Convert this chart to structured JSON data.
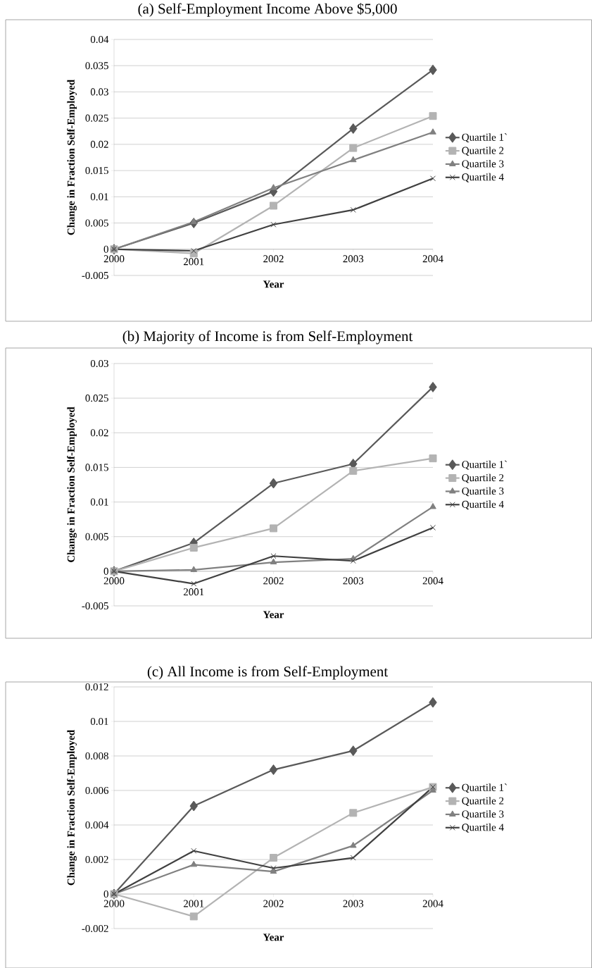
{
  "chart_data": [
    {
      "type": "line",
      "title": "(a) Self-Employment Income Above $5,000",
      "xlabel": "Year",
      "ylabel": "Change in Fraction Self-Employed",
      "categories": [
        "2000",
        "2001",
        "2002",
        "2003",
        "2004"
      ],
      "ylim": [
        -0.005,
        0.04
      ],
      "yticks": [
        -0.005,
        0,
        0.005,
        0.01,
        0.015,
        0.02,
        0.025,
        0.03,
        0.035,
        0.04
      ],
      "grid": "y",
      "legend": "right",
      "series": [
        {
          "name": "Quartile 1`",
          "color": "#595959",
          "marker": "diamond",
          "values": [
            0,
            0.005,
            0.011,
            0.023,
            0.0342
          ]
        },
        {
          "name": "Quartile 2",
          "color": "#b3b3b3",
          "marker": "square",
          "values": [
            0,
            -0.0008,
            0.0083,
            0.0193,
            0.0254
          ]
        },
        {
          "name": "Quartile 3",
          "color": "#808080",
          "marker": "triangle",
          "values": [
            0,
            0.0052,
            0.0117,
            0.017,
            0.0223
          ]
        },
        {
          "name": "Quartile 4",
          "color": "#404040",
          "marker": "cross",
          "values": [
            0,
            -0.0003,
            0.0047,
            0.0075,
            0.0135
          ]
        }
      ]
    },
    {
      "type": "line",
      "title": "(b) Majority of Income is from Self-Employment",
      "xlabel": "Year",
      "ylabel": "Change in Fraction Self-Employed",
      "categories": [
        "2000",
        "2001",
        "2002",
        "2003",
        "2004"
      ],
      "ylim": [
        -0.005,
        0.03
      ],
      "yticks": [
        -0.005,
        0,
        0.005,
        0.01,
        0.015,
        0.02,
        0.025,
        0.03
      ],
      "grid": "y",
      "legend": "right",
      "series": [
        {
          "name": "Quartile 1`",
          "color": "#595959",
          "marker": "diamond",
          "values": [
            0,
            0.0041,
            0.0127,
            0.0155,
            0.0266
          ]
        },
        {
          "name": "Quartile 2",
          "color": "#b3b3b3",
          "marker": "square",
          "values": [
            0,
            0.0034,
            0.0062,
            0.0145,
            0.0163
          ]
        },
        {
          "name": "Quartile 3",
          "color": "#808080",
          "marker": "triangle",
          "values": [
            0,
            0.0002,
            0.0013,
            0.0018,
            0.0093
          ]
        },
        {
          "name": "Quartile 4",
          "color": "#404040",
          "marker": "cross",
          "values": [
            0,
            -0.0018,
            0.0022,
            0.0015,
            0.0063
          ]
        }
      ]
    },
    {
      "type": "line",
      "title": "(c) All Income is from Self-Employment",
      "xlabel": "Year",
      "ylabel": "Change in Fraction Self-Employed",
      "categories": [
        "2000",
        "2001",
        "2002",
        "2003",
        "2004"
      ],
      "ylim": [
        -0.002,
        0.012
      ],
      "yticks": [
        -0.002,
        0,
        0.002,
        0.004,
        0.006,
        0.008,
        0.01,
        0.012
      ],
      "grid": "y",
      "legend": "right",
      "series": [
        {
          "name": "Quartile 1`",
          "color": "#595959",
          "marker": "diamond",
          "values": [
            0,
            0.0051,
            0.0072,
            0.0083,
            0.0111
          ]
        },
        {
          "name": "Quartile 2",
          "color": "#b3b3b3",
          "marker": "square",
          "values": [
            0,
            -0.0013,
            0.0021,
            0.0047,
            0.0062
          ]
        },
        {
          "name": "Quartile 3",
          "color": "#808080",
          "marker": "triangle",
          "values": [
            0,
            0.0017,
            0.0013,
            0.0028,
            0.006
          ]
        },
        {
          "name": "Quartile 4",
          "color": "#404040",
          "marker": "cross",
          "values": [
            0,
            0.0025,
            0.0015,
            0.0021,
            0.0062
          ]
        }
      ]
    }
  ]
}
